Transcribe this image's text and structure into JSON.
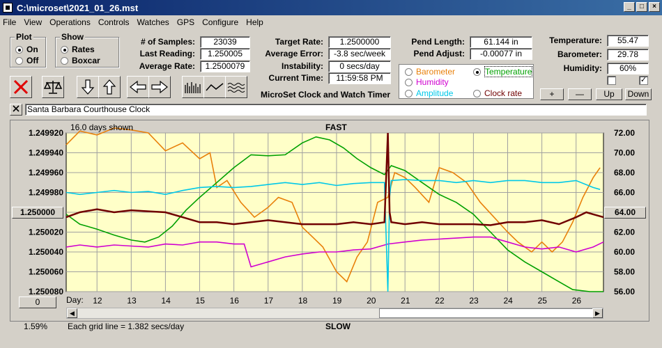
{
  "window": {
    "title": "C:\\microset\\2021_01_26.mst"
  },
  "menu": [
    "File",
    "View",
    "Operations",
    "Controls",
    "Watches",
    "GPS",
    "Configure",
    "Help"
  ],
  "plot_group": {
    "label": "Plot",
    "options": [
      "On",
      "Off"
    ],
    "selected": "On"
  },
  "show_group": {
    "label": "Show",
    "options": [
      "Rates",
      "Boxcar"
    ],
    "selected": "Rates"
  },
  "stats": {
    "samples_label": "# of Samples:",
    "samples": "23039",
    "last_reading_label": "Last Reading:",
    "last_reading": "1.250005",
    "average_rate_label": "Average Rate:",
    "average_rate": "1.2500079",
    "target_rate_label": "Target Rate:",
    "target_rate": "1.2500000",
    "average_error_label": "Average Error:",
    "average_error": "-3.8 sec/week",
    "instability_label": "Instability:",
    "instability": "0 secs/day",
    "current_time_label": "Current Time:",
    "current_time": "11:59:58 PM",
    "pend_length_label": "Pend Length:",
    "pend_length": "61.144 in",
    "pend_adjust_label": "Pend Adjust:",
    "pend_adjust": "-0.00077 in",
    "temperature_label": "Temperature:",
    "temperature": "55.47",
    "barometer_label": "Barometer:",
    "barometer": "29.78",
    "humidity_label": "Humidity:",
    "humidity": "60%"
  },
  "app_title": "MicroSet Clock and Watch Timer",
  "sensor_select": {
    "options": [
      {
        "label": "Barometer",
        "color": "#e8800a",
        "selected": false
      },
      {
        "label": "Temperature",
        "color": "#00a000",
        "selected": true
      },
      {
        "label": "Humidity",
        "color": "#d000d0",
        "selected": false
      },
      {
        "label": "Amplitude",
        "color": "#00c8e8",
        "selected": false
      },
      {
        "label": "Clock rate",
        "color": "#700000",
        "selected": false
      }
    ]
  },
  "scale_buttons": [
    "+",
    "—",
    "Up",
    "Down"
  ],
  "watch_name": "Santa Barbara Courthouse Clock",
  "chart_header": {
    "days_shown": "16.0 days shown",
    "top_label": "FAST",
    "bottom_label": "SLOW",
    "grid_note": "Each grid line = 1.382 secs/day",
    "percent": "1.59%",
    "left_value_button": "1.250000",
    "right_value_button": "64.00",
    "x_button": "0",
    "day_label": "Day:"
  },
  "chart_data": {
    "type": "line",
    "x_label": "Day:",
    "x_ticks": [
      "12",
      "13",
      "14",
      "15",
      "16",
      "17",
      "18",
      "19",
      "20",
      "21",
      "22",
      "23",
      "24",
      "25",
      "26"
    ],
    "y_left_ticks": [
      "1.249920",
      "1.249940",
      "1.249960",
      "1.249980",
      "1.250000",
      "1.250020",
      "1.250040",
      "1.250060",
      "1.250080"
    ],
    "y_left_range": [
      1.24992,
      1.25008
    ],
    "y_right_ticks": [
      "72.00",
      "70.00",
      "68.00",
      "66.00",
      "64.00",
      "62.00",
      "60.00",
      "58.00",
      "56.00"
    ],
    "y_right_range": [
      56,
      72
    ],
    "x_range": [
      11.1,
      26.8
    ],
    "series": [
      {
        "name": "Barometer",
        "color": "#e8800a",
        "x": [
          11.1,
          11.5,
          12.0,
          12.5,
          13.0,
          13.5,
          14.0,
          14.5,
          15.0,
          15.3,
          15.5,
          15.8,
          16.2,
          16.6,
          17.0,
          17.3,
          17.7,
          18.0,
          18.3,
          18.6,
          19.0,
          19.3,
          19.6,
          19.9,
          20.2,
          20.5,
          20.7,
          21.0,
          21.3,
          21.7,
          22.0,
          22.4,
          22.8,
          23.2,
          23.6,
          24.0,
          24.3,
          24.7,
          25.0,
          25.3,
          25.6,
          25.9,
          26.2,
          26.5,
          26.7
        ],
        "y": [
          1.249932,
          1.249918,
          1.249922,
          1.249915,
          1.249917,
          1.24992,
          1.249938,
          1.24993,
          1.249946,
          1.24994,
          1.249975,
          1.249968,
          1.24999,
          1.250005,
          1.249995,
          1.249985,
          1.24999,
          1.250015,
          1.250025,
          1.250035,
          1.25006,
          1.25007,
          1.250045,
          1.25003,
          1.24999,
          1.249985,
          1.24996,
          1.249965,
          1.249975,
          1.24999,
          1.249955,
          1.24996,
          1.24997,
          1.24999,
          1.250005,
          1.25002,
          1.25003,
          1.25004,
          1.25003,
          1.25004,
          1.25003,
          1.25001,
          1.249985,
          1.249965,
          1.249955
        ]
      },
      {
        "name": "Temperature",
        "color": "#00a000",
        "x": [
          11.1,
          11.5,
          12.0,
          12.5,
          13.0,
          13.4,
          13.8,
          14.2,
          14.6,
          15.0,
          15.5,
          16.0,
          16.5,
          17.0,
          17.5,
          18.0,
          18.4,
          18.8,
          19.2,
          19.6,
          20.0,
          20.4,
          20.6,
          21.0,
          21.5,
          22.0,
          22.5,
          23.0,
          23.5,
          24.0,
          24.5,
          25.0,
          25.5,
          25.9,
          26.4,
          26.8
        ],
        "y": [
          63.8,
          62.8,
          62.3,
          61.7,
          61.2,
          61.0,
          61.5,
          62.6,
          64.2,
          65.5,
          67.0,
          68.5,
          69.8,
          69.7,
          69.8,
          71.0,
          71.6,
          71.3,
          70.5,
          69.4,
          68.5,
          67.8,
          68.7,
          68.2,
          67.0,
          65.8,
          65.0,
          63.8,
          62.0,
          60.2,
          59.0,
          58.0,
          57.0,
          56.2,
          56.0,
          56.0
        ]
      },
      {
        "name": "Humidity",
        "color": "#d000d0",
        "x": [
          11.1,
          11.5,
          12.0,
          12.5,
          13.0,
          13.5,
          14.0,
          14.5,
          15.0,
          15.5,
          16.0,
          16.3,
          16.5,
          17.0,
          17.5,
          18.0,
          18.5,
          19.0,
          19.5,
          20.0,
          20.5,
          21.0,
          21.5,
          22.0,
          22.5,
          23.0,
          23.5,
          24.0,
          24.5,
          25.0,
          25.5,
          26.0,
          26.5,
          26.8
        ],
        "y": [
          1.250035,
          1.250033,
          1.250035,
          1.250033,
          1.250034,
          1.250035,
          1.250032,
          1.250033,
          1.25003,
          1.25003,
          1.250032,
          1.250032,
          1.250055,
          1.25005,
          1.250045,
          1.250042,
          1.25004,
          1.25004,
          1.250038,
          1.250037,
          1.250032,
          1.25003,
          1.250028,
          1.250027,
          1.250026,
          1.250025,
          1.250025,
          1.25003,
          1.250035,
          1.250037,
          1.250035,
          1.25004,
          1.250035,
          1.25003
        ]
      },
      {
        "name": "Amplitude",
        "color": "#00c8e8",
        "x": [
          11.1,
          11.5,
          12.0,
          12.5,
          13.0,
          13.5,
          14.0,
          14.5,
          15.0,
          15.5,
          16.0,
          16.5,
          17.0,
          17.5,
          18.0,
          18.5,
          19.0,
          19.5,
          20.0,
          20.4,
          20.5,
          20.55,
          20.6,
          21.0,
          21.5,
          22.0,
          22.5,
          23.0,
          23.5,
          24.0,
          24.5,
          25.0,
          25.5,
          26.0,
          26.5,
          26.7
        ],
        "y": [
          1.24998,
          1.249982,
          1.24998,
          1.249978,
          1.24998,
          1.249979,
          1.249982,
          1.249978,
          1.249975,
          1.249974,
          1.249975,
          1.249974,
          1.249972,
          1.24997,
          1.249972,
          1.24997,
          1.249973,
          1.249971,
          1.24997,
          1.24997,
          1.25008,
          1.249985,
          1.249968,
          1.249967,
          1.249968,
          1.249968,
          1.24997,
          1.249968,
          1.24997,
          1.249968,
          1.249968,
          1.24997,
          1.24997,
          1.249968,
          1.249975,
          1.249977
        ]
      },
      {
        "name": "Clock rate",
        "color": "#700000",
        "x": [
          11.1,
          11.5,
          12.0,
          12.5,
          13.0,
          13.5,
          14.0,
          14.5,
          15.0,
          15.5,
          16.0,
          16.5,
          17.0,
          17.5,
          18.0,
          18.5,
          19.0,
          19.5,
          20.0,
          20.4,
          20.5,
          20.55,
          20.6,
          21.0,
          21.5,
          22.0,
          22.5,
          23.0,
          23.5,
          24.0,
          24.5,
          25.0,
          25.5,
          26.0,
          26.3,
          26.5,
          26.8
        ],
        "y": [
          1.250005,
          1.25,
          1.249997,
          1.25,
          1.249998,
          1.249999,
          1.25,
          1.250005,
          1.25001,
          1.25001,
          1.250012,
          1.25001,
          1.250008,
          1.25001,
          1.250012,
          1.250012,
          1.250012,
          1.25001,
          1.250012,
          1.25001,
          1.24992,
          1.25,
          1.25001,
          1.250012,
          1.25001,
          1.250012,
          1.250012,
          1.250012,
          1.250013,
          1.25001,
          1.25001,
          1.250008,
          1.250012,
          1.250005,
          1.25,
          1.250002,
          1.250005
        ]
      }
    ]
  }
}
